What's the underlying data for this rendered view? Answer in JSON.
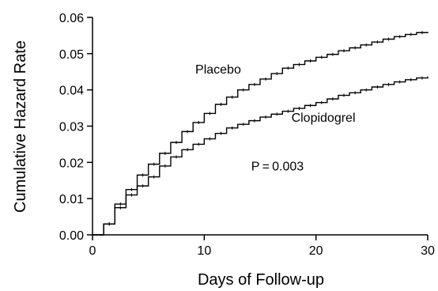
{
  "chart_data": {
    "type": "line",
    "step": true,
    "xlabel": "Days of Follow-up",
    "ylabel": "Cumulative Hazard Rate",
    "xlim": [
      0,
      30
    ],
    "ylim": [
      0,
      0.06
    ],
    "x_ticks": [
      "0",
      "10",
      "20",
      "30"
    ],
    "y_ticks": [
      "0.00",
      "0.01",
      "0.02",
      "0.03",
      "0.04",
      "0.05",
      "0.06"
    ],
    "grid": false,
    "line_color": "#000000",
    "series": [
      {
        "name": "Placebo",
        "x": [
          0,
          1,
          2,
          3,
          4,
          5,
          6,
          7,
          8,
          9,
          10,
          11,
          12,
          13,
          14,
          15,
          16,
          17,
          18,
          19,
          20,
          21,
          22,
          23,
          24,
          25,
          26,
          27,
          28,
          29,
          30
        ],
        "y": [
          0.0,
          0.003,
          0.0085,
          0.0125,
          0.0165,
          0.0195,
          0.0225,
          0.0255,
          0.0285,
          0.031,
          0.0335,
          0.036,
          0.038,
          0.04,
          0.0415,
          0.043,
          0.0445,
          0.046,
          0.047,
          0.048,
          0.049,
          0.0498,
          0.0508,
          0.0516,
          0.0524,
          0.0532,
          0.054,
          0.0547,
          0.0553,
          0.0558,
          0.056
        ]
      },
      {
        "name": "Clopidogrel",
        "x": [
          0,
          1,
          2,
          3,
          4,
          5,
          6,
          7,
          8,
          9,
          10,
          11,
          12,
          13,
          14,
          15,
          16,
          17,
          18,
          19,
          20,
          21,
          22,
          23,
          24,
          25,
          26,
          27,
          28,
          29,
          30
        ],
        "y": [
          0.0,
          0.003,
          0.0075,
          0.011,
          0.0135,
          0.016,
          0.019,
          0.0215,
          0.0235,
          0.025,
          0.0265,
          0.028,
          0.0295,
          0.0305,
          0.0315,
          0.0325,
          0.0333,
          0.0341,
          0.0349,
          0.0357,
          0.0365,
          0.0375,
          0.0385,
          0.0392,
          0.04,
          0.0408,
          0.0415,
          0.0422,
          0.0428,
          0.0433,
          0.0437
        ]
      }
    ],
    "annotations": [
      {
        "text": "Placebo",
        "x": 9.2,
        "y": 0.0445
      },
      {
        "text": "Clopidogrel",
        "x": 17.8,
        "y": 0.0312
      },
      {
        "text": "P = 0.003",
        "x": 14.2,
        "y": 0.0178
      }
    ]
  }
}
